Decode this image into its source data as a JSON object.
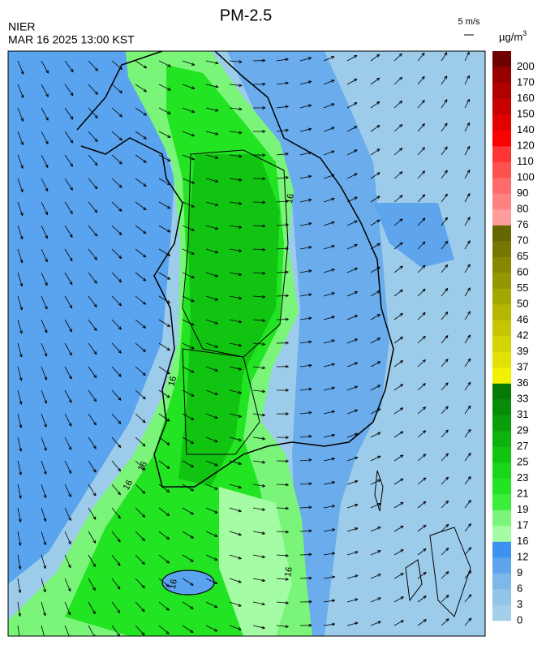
{
  "header": {
    "title": "PM-2.5",
    "agency": "NIER",
    "datetime": "MAR 16 2025 13:00 KST",
    "wind_scale": "5 m/s"
  },
  "legend": {
    "unit": "µg/m",
    "unit_superscript": "3",
    "levels": [
      0,
      3,
      6,
      9,
      12,
      16,
      17,
      19,
      21,
      23,
      25,
      27,
      29,
      31,
      33,
      36,
      37,
      39,
      42,
      46,
      50,
      55,
      60,
      65,
      70,
      76,
      80,
      90,
      100,
      110,
      120,
      140,
      150,
      160,
      170,
      200
    ],
    "colors": [
      "#a2cfe9",
      "#92c5ea",
      "#7db8eb",
      "#5fa5ee",
      "#3d92f0",
      "#a4fca4",
      "#7af57a",
      "#3cee3c",
      "#22e422",
      "#1ad61a",
      "#12c412",
      "#0eb20e",
      "#0a9f0a",
      "#078c07",
      "#057a05",
      "#f2f200",
      "#e2e200",
      "#d4d400",
      "#c6c600",
      "#b6b600",
      "#a6a600",
      "#969600",
      "#868600",
      "#767600",
      "#666600",
      "#ff9c9c",
      "#ff8282",
      "#ff6a6a",
      "#ff5050",
      "#ff3434",
      "#ff0000",
      "#e20000",
      "#c80000",
      "#b00000",
      "#980000",
      "#700000"
    ]
  },
  "map": {
    "contour_labels": [
      "16",
      "16",
      "16",
      "16",
      "16",
      "16"
    ]
  }
}
